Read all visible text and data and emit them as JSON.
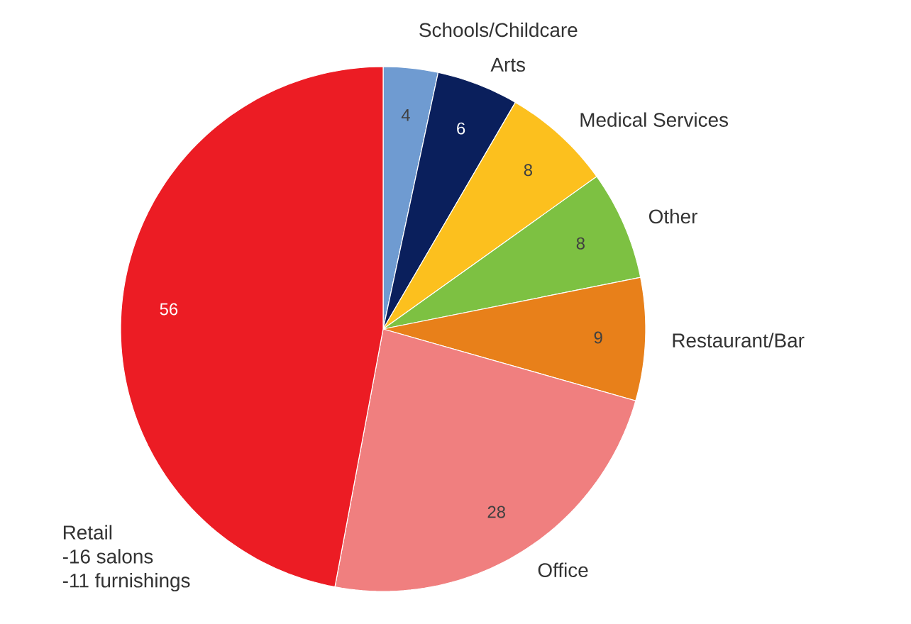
{
  "chart_data": {
    "type": "pie",
    "categories": [
      "Schools/Childcare",
      "Arts",
      "Medical Services",
      "Other",
      "Restaurant/Bar",
      "Office",
      "Retail"
    ],
    "values": [
      4,
      6,
      8,
      8,
      9,
      28,
      56
    ],
    "colors": [
      "#6f9bd1",
      "#0a1f5c",
      "#fcc01e",
      "#7dc142",
      "#e8801a",
      "#f07f7f",
      "#ec1c24"
    ],
    "data_labels": true,
    "annotations": [
      "-16 salons",
      "-11 furnishings"
    ]
  }
}
